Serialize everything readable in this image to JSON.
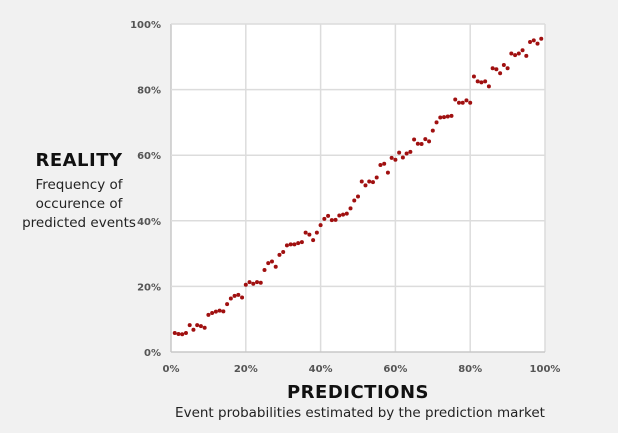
{
  "chart_data": {
    "type": "scatter",
    "title": "",
    "xlabel": "PREDICTIONS",
    "xlabel_sub": "Event probabilities estimated by the prediction market",
    "ylabel": "REALITY",
    "ylabel_sub": "Frequency of occurence of predicted events",
    "xlim": [
      0,
      100
    ],
    "ylim": [
      0,
      100
    ],
    "x_ticks": [
      "0%",
      "20%",
      "40%",
      "60%",
      "80%",
      "100%"
    ],
    "y_ticks": [
      "0%",
      "20%",
      "40%",
      "60%",
      "80%",
      "100%"
    ],
    "grid": true,
    "marker_color": "#a01010",
    "x": [
      1,
      2,
      3,
      4,
      5,
      6,
      7,
      8,
      9,
      10,
      11,
      12,
      13,
      14,
      15,
      16,
      17,
      18,
      19,
      20,
      21,
      22,
      23,
      24,
      25,
      26,
      27,
      28,
      29,
      30,
      31,
      32,
      33,
      34,
      35,
      36,
      37,
      38,
      39,
      40,
      41,
      42,
      43,
      44,
      45,
      46,
      47,
      48,
      49,
      50,
      51,
      52,
      53,
      54,
      55,
      56,
      57,
      58,
      59,
      60,
      61,
      62,
      63,
      64,
      65,
      66,
      67,
      68,
      69,
      70,
      71,
      72,
      73,
      74,
      75,
      76,
      77,
      78,
      79,
      80,
      81,
      82,
      83,
      84,
      85,
      86,
      87,
      88,
      89,
      90,
      91,
      92,
      93,
      94,
      95,
      96,
      97,
      98,
      99
    ],
    "y": [
      5.8,
      5.5,
      5.4,
      5.8,
      8.2,
      6.8,
      8.2,
      7.9,
      7.4,
      11.3,
      11.9,
      12.3,
      12.6,
      12.4,
      14.6,
      16.3,
      17.1,
      17.4,
      16.6,
      20.5,
      21.3,
      20.8,
      21.3,
      21.1,
      25,
      27.1,
      27.6,
      26,
      29.6,
      30.5,
      32.5,
      32.8,
      32.8,
      33.2,
      33.5,
      36.4,
      35.8,
      34.1,
      36.4,
      38.7,
      40.6,
      41.5,
      40.2,
      40.3,
      41.6,
      41.9,
      42.2,
      43.8,
      46.2,
      47.4,
      52,
      50.8,
      52,
      51.8,
      53.2,
      57,
      57.4,
      54.7,
      59.2,
      58.6,
      60.8,
      59.3,
      60.5,
      61,
      64.8,
      63.5,
      63.4,
      64.9,
      64.2,
      67.5,
      70,
      71.5,
      71.6,
      71.8,
      72,
      77,
      76,
      76,
      76.7,
      76,
      84,
      82.5,
      82.2,
      82.5,
      81,
      86.5,
      86.2,
      85,
      87.5,
      86.5,
      91,
      90.5,
      91,
      92,
      90.3,
      94.5,
      95,
      94,
      95.5
    ]
  }
}
